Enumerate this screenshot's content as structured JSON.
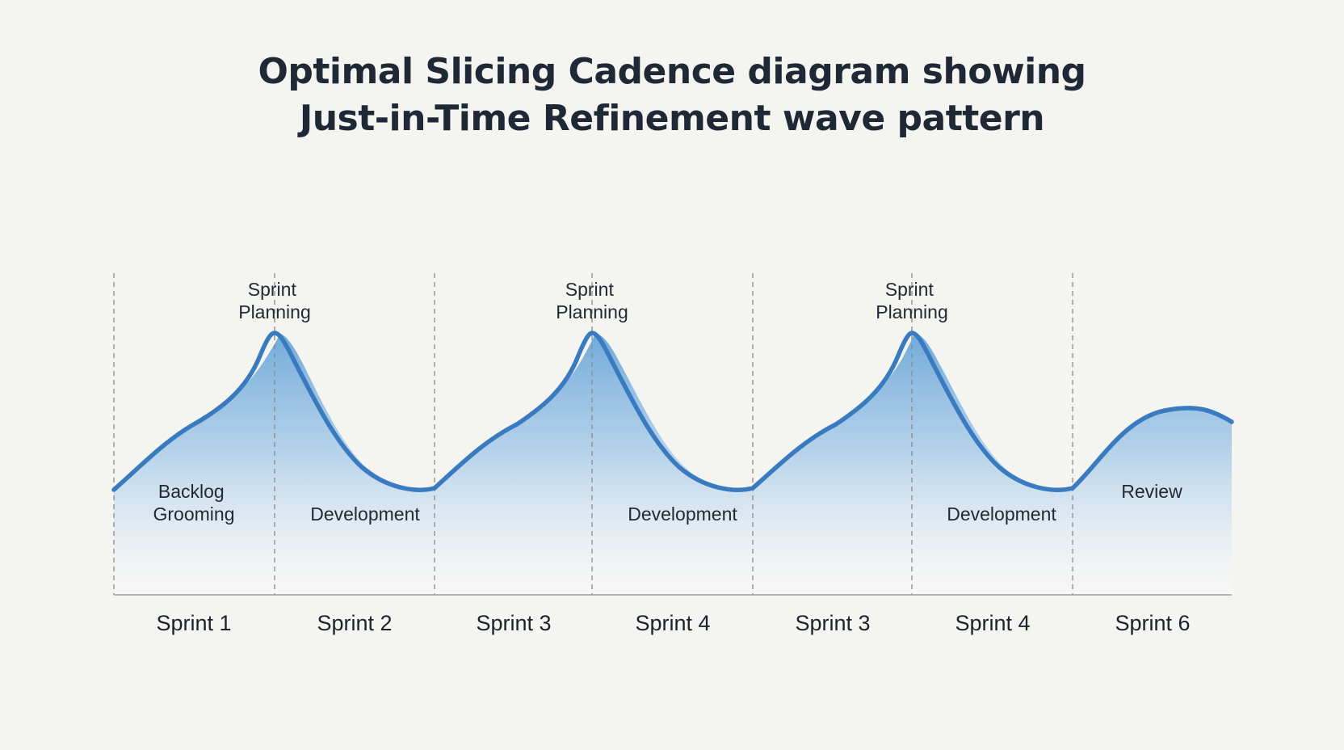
{
  "title": {
    "line1": "Optimal Slicing Cadence diagram showing",
    "line2": "Just-in-Time Refinement wave pattern"
  },
  "sprints": [
    "Sprint 1",
    "Sprint 2",
    "Sprint 3",
    "Sprint 4",
    "Sprint 3",
    "Sprint 4",
    "Sprint 6"
  ],
  "phases": [
    {
      "line1": "Backlog",
      "line2": "Grooming"
    },
    {
      "line1": "Sprint",
      "line2": "Planning"
    },
    {
      "line1": "Development",
      "line2": ""
    },
    {
      "line1": "Sprint",
      "line2": "Planning"
    },
    {
      "line1": "Development",
      "line2": ""
    },
    {
      "line1": "Sprint",
      "line2": "Planning"
    },
    {
      "line1": "Development",
      "line2": ""
    },
    {
      "line1": "Review",
      "line2": ""
    }
  ],
  "colors": {
    "wave": "#3a7bc0",
    "fill_top": "#6aa6d8",
    "fill_bottom": "#ffffff",
    "divider": "#8a8a8a",
    "baseline": "#9a9fa6"
  }
}
